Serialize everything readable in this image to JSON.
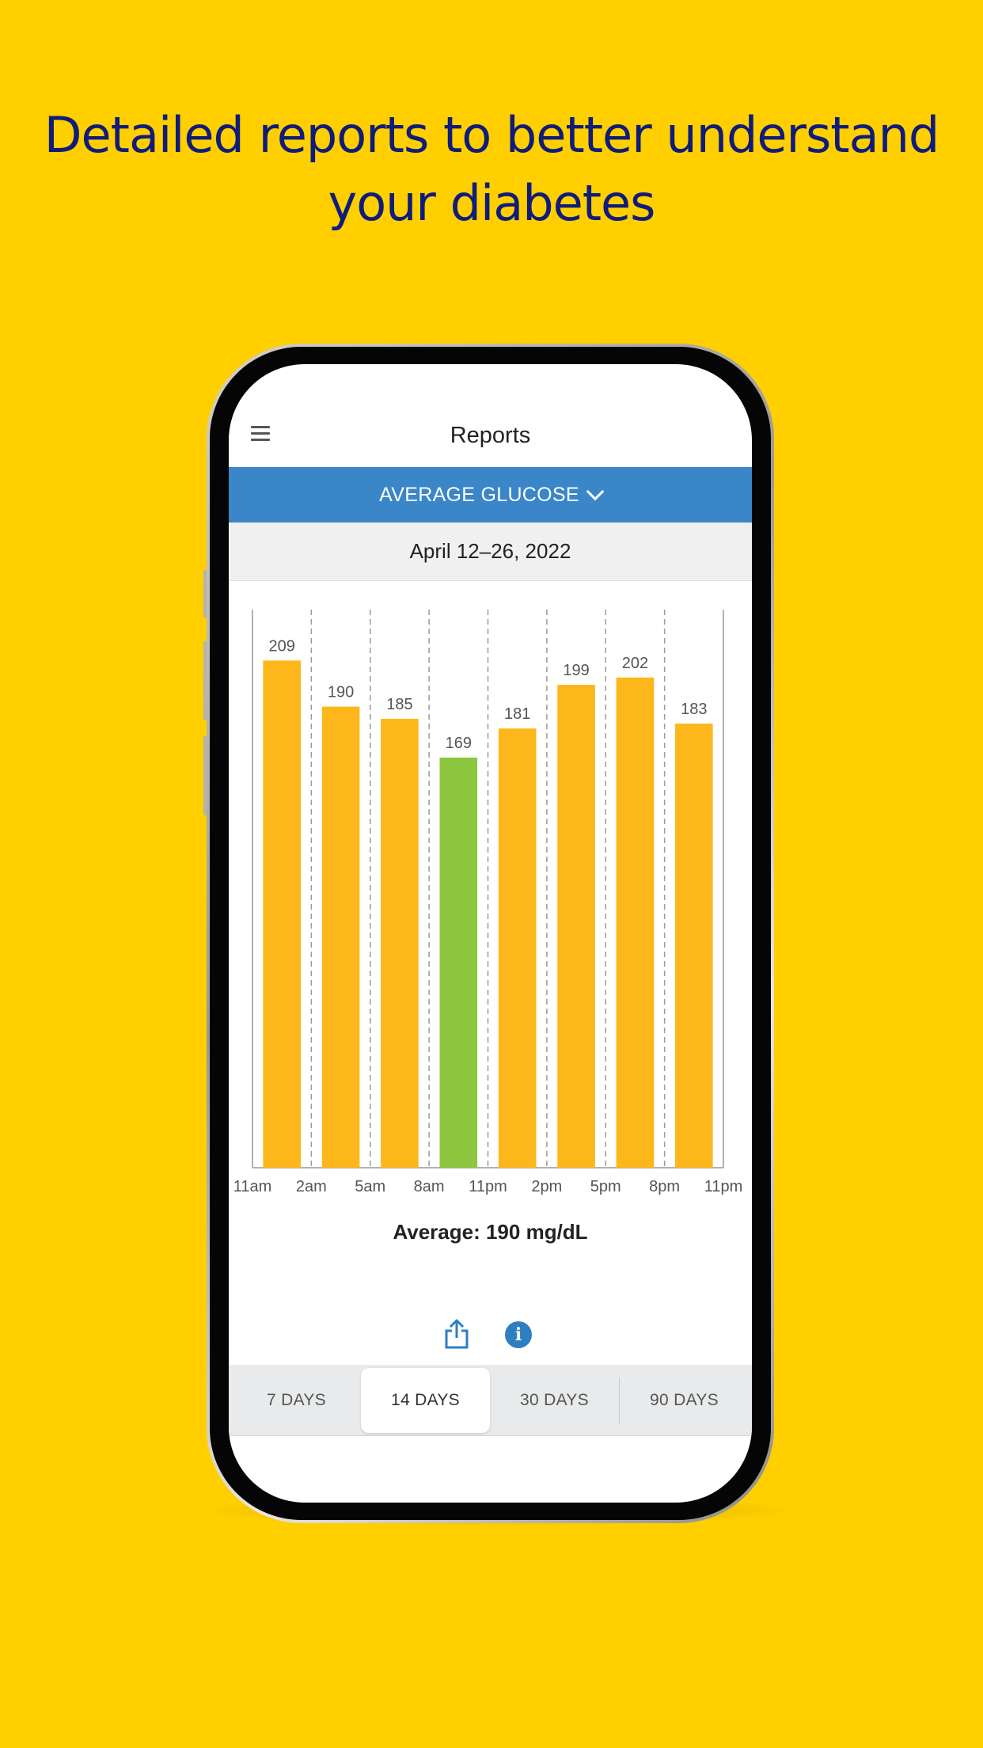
{
  "headline": {
    "line1": "Detailed reports to better understand",
    "line2": "your diabetes"
  },
  "app": {
    "title": "Reports",
    "report_selector": "AVERAGE GLUCOSE",
    "date_range": "April 12–26, 2022",
    "average_label": "Average: 190 mg/dL",
    "tabs": [
      {
        "label": "7 DAYS",
        "active": false
      },
      {
        "label": "14 DAYS",
        "active": true
      },
      {
        "label": "30 DAYS",
        "active": false
      },
      {
        "label": "90 DAYS",
        "active": false
      }
    ],
    "icons": [
      "menu-icon",
      "chevron-down-icon",
      "share-icon",
      "info-icon"
    ]
  },
  "colors": {
    "background": "#FFCF00",
    "headline": "#0F1C7A",
    "blue_bar": "#3A86C8",
    "bar_high": "#FDB71A",
    "bar_in_range": "#8DC63F"
  },
  "chart_data": {
    "type": "bar",
    "x_ticks": [
      "11am",
      "2am",
      "5am",
      "8am",
      "11pm",
      "2pm",
      "5pm",
      "8pm",
      "11pm"
    ],
    "values": [
      209,
      190,
      185,
      169,
      181,
      199,
      202,
      183
    ],
    "in_range": [
      false,
      false,
      false,
      true,
      false,
      false,
      false,
      false
    ],
    "ylim": [
      0,
      230
    ],
    "grid": "vertical dashed"
  }
}
